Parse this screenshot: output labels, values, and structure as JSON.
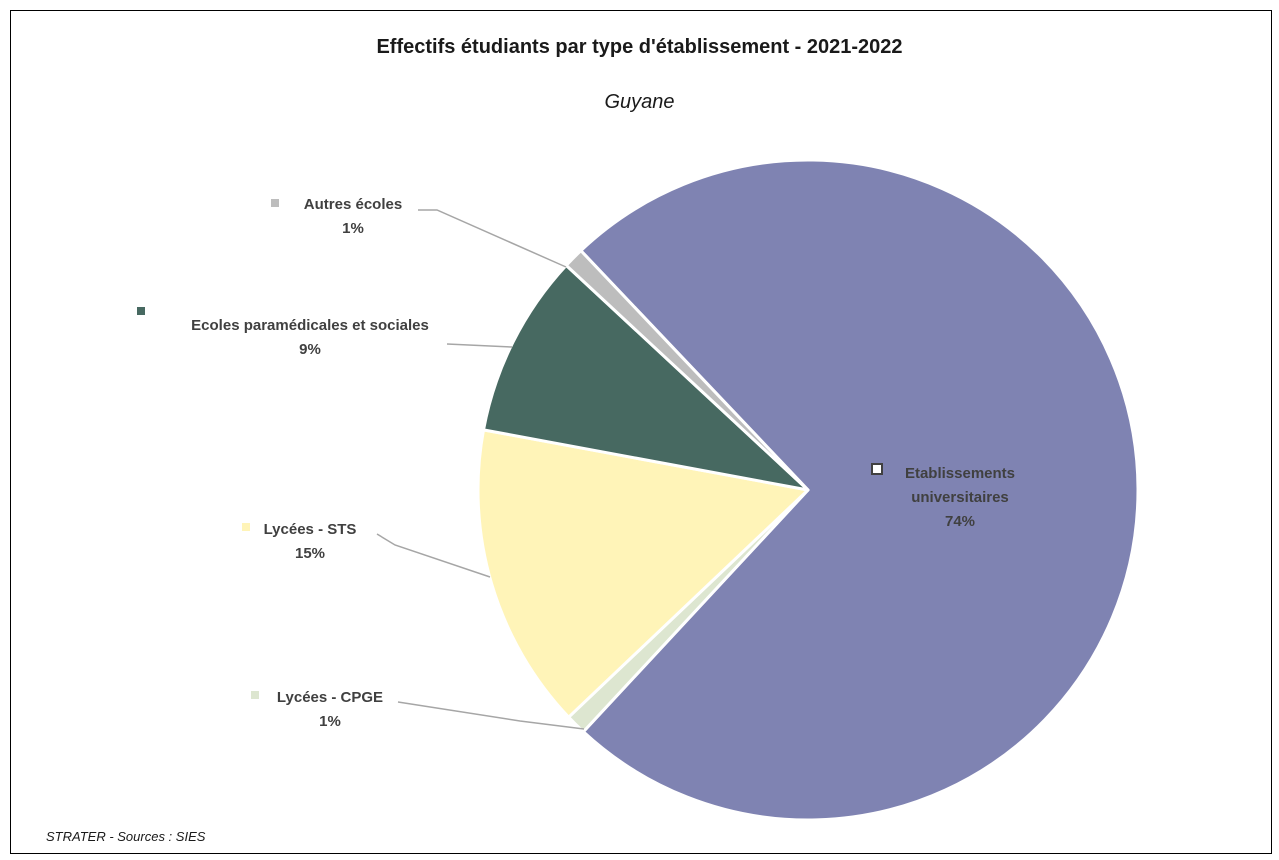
{
  "chart_data": {
    "type": "pie",
    "title": "Effectifs étudiants par type d'établissement - 2021-2022",
    "subtitle": "Guyane",
    "source": "STRATER - Sources : SIES",
    "slices": [
      {
        "label": "Etablissements universitaires",
        "lines": [
          "Etablissements",
          "universitaires"
        ],
        "percent_label": "74%",
        "value": 74,
        "color": "#7F83B2"
      },
      {
        "label": "Lycées - CPGE",
        "lines": [
          "Lycées - CPGE"
        ],
        "percent_label": "1%",
        "value": 1,
        "color": "#DDE6D0"
      },
      {
        "label": "Lycées - STS",
        "lines": [
          "Lycées - STS"
        ],
        "percent_label": "15%",
        "value": 15,
        "color": "#FFF4B8"
      },
      {
        "label": "Ecoles paramédicales et sociales",
        "lines": [
          "Ecoles paramédicales et sociales"
        ],
        "percent_label": "9%",
        "value": 9,
        "color": "#476961"
      },
      {
        "label": "Autres écoles",
        "lines": [
          "Autres écoles"
        ],
        "percent_label": "1%",
        "value": 1,
        "color": "#BDBDBD"
      }
    ]
  }
}
